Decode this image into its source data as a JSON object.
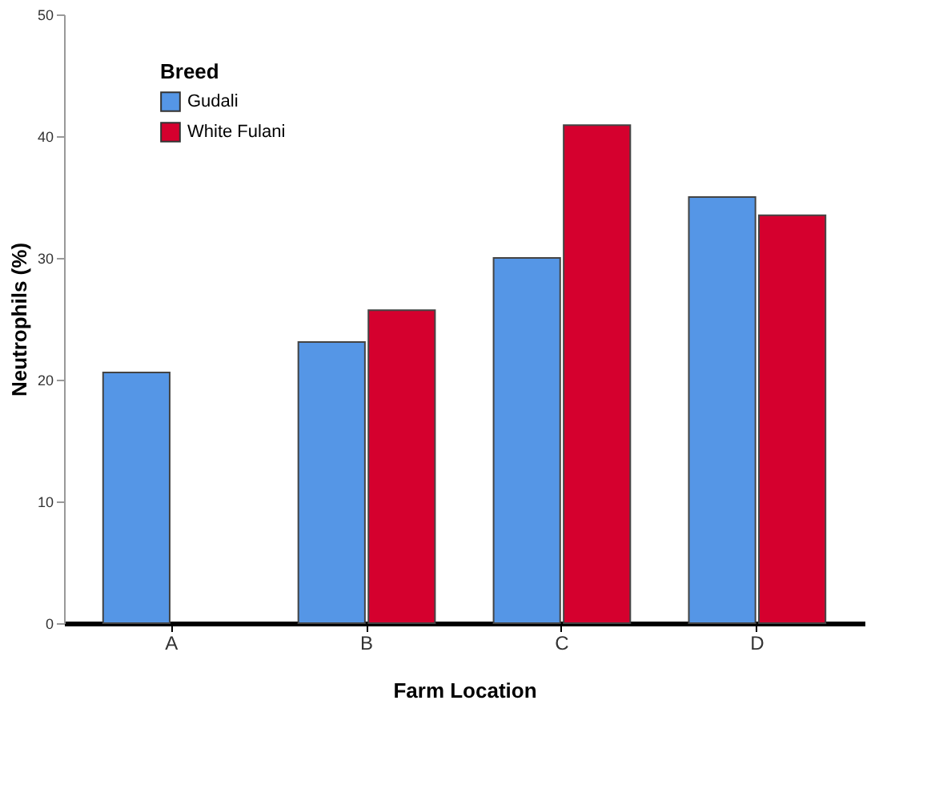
{
  "chart_data": {
    "type": "bar",
    "xlabel": "Farm Location",
    "ylabel": "Neutrophils (%)",
    "legend_title": "Breed",
    "categories": [
      "A",
      "B",
      "C",
      "D"
    ],
    "series": [
      {
        "name": "Gudali",
        "color": "#5596e6",
        "values": [
          20.6,
          23.1,
          30.0,
          35.0
        ]
      },
      {
        "name": "White Fulani",
        "color": "#d5002e",
        "values": [
          null,
          25.7,
          40.9,
          33.5
        ]
      }
    ],
    "ylim": [
      0,
      50
    ],
    "yticks": [
      0,
      10,
      20,
      30,
      40,
      50
    ],
    "grid": false,
    "legend": "top left"
  }
}
